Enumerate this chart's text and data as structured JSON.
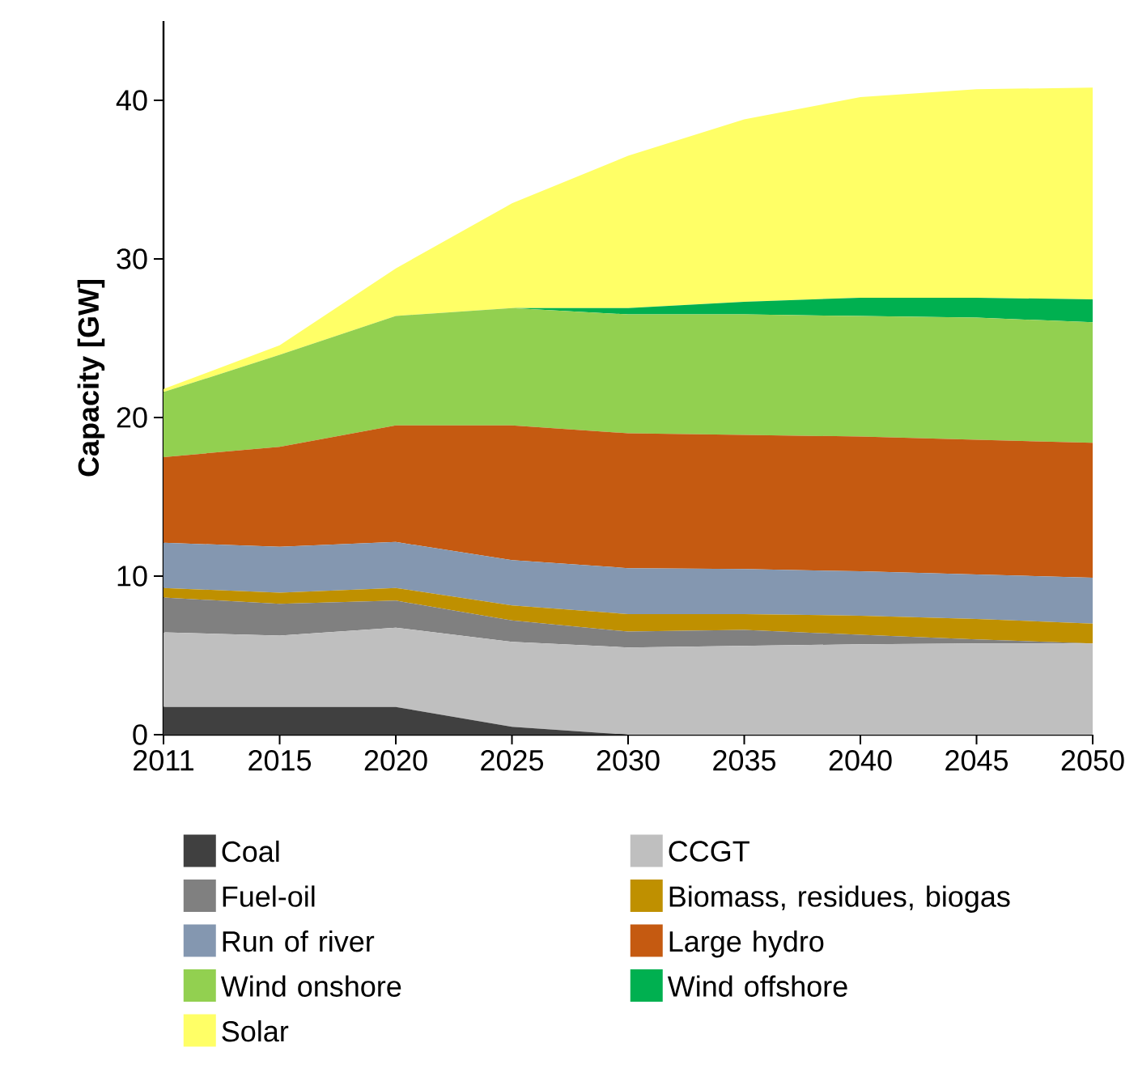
{
  "chart_data": {
    "type": "area",
    "stacked": true,
    "ylabel": "Capacity [GW]",
    "categories": [
      "2011",
      "2015",
      "2020",
      "2025",
      "2030",
      "2035",
      "2040",
      "2045",
      "2050"
    ],
    "ylim": [
      0,
      45
    ],
    "yticks": [
      0,
      10,
      20,
      30,
      40
    ],
    "legend": "bottom",
    "series": [
      {
        "name": "Coal",
        "color": "#404040",
        "values": [
          1.75,
          1.75,
          1.75,
          0.5,
          0,
          0,
          0,
          0,
          0
        ]
      },
      {
        "name": "CCGT",
        "color": "#bfbfbf",
        "values": [
          4.7,
          4.5,
          5.0,
          5.35,
          5.5,
          5.6,
          5.7,
          5.75,
          5.75
        ]
      },
      {
        "name": "Fuel-oil",
        "color": "#808080",
        "values": [
          2.2,
          2.0,
          1.7,
          1.35,
          1.0,
          1.0,
          0.6,
          0.25,
          0
        ]
      },
      {
        "name": "Biomass, residues, biogas",
        "color": "#bf9000",
        "values": [
          0.6,
          0.7,
          0.8,
          0.95,
          1.1,
          1.0,
          1.2,
          1.3,
          1.25
        ]
      },
      {
        "name": "Run of river",
        "color": "#8497b0",
        "values": [
          2.85,
          2.9,
          2.9,
          2.85,
          2.9,
          2.85,
          2.8,
          2.8,
          2.9
        ]
      },
      {
        "name": "Large hydro",
        "color": "#c55a11",
        "values": [
          5.4,
          6.3,
          7.35,
          8.5,
          8.5,
          8.45,
          8.5,
          8.5,
          8.5
        ]
      },
      {
        "name": "Wind onshore",
        "color": "#92d050",
        "values": [
          4.1,
          5.8,
          6.9,
          7.4,
          7.5,
          7.6,
          7.6,
          7.7,
          7.6
        ]
      },
      {
        "name": "Wind offshore",
        "color": "#00b050",
        "values": [
          0,
          0,
          0,
          0,
          0.4,
          0.8,
          1.15,
          1.25,
          1.45
        ]
      },
      {
        "name": "Solar",
        "color": "#ffff66",
        "values": [
          0.2,
          0.6,
          3.0,
          6.6,
          9.6,
          11.5,
          12.65,
          13.15,
          13.35
        ]
      }
    ]
  }
}
